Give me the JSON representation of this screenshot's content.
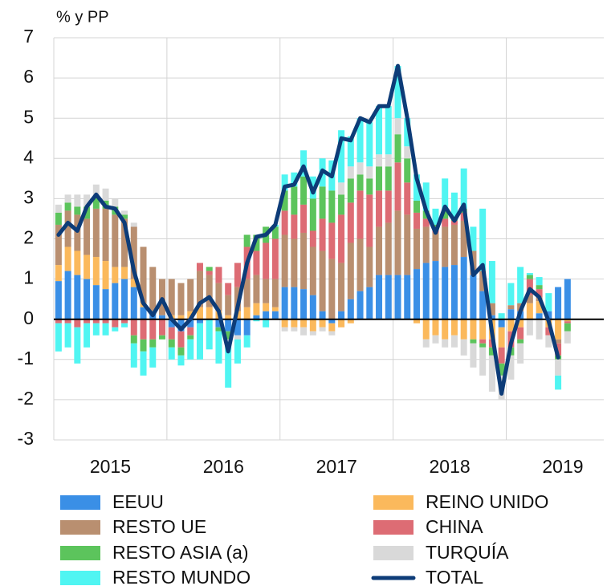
{
  "chart_data": {
    "type": "bar",
    "stacked": true,
    "y_label": "% y PP",
    "categories": [
      null,
      null,
      null,
      null,
      null,
      null,
      null,
      null,
      null,
      null,
      null,
      null,
      null,
      null,
      null,
      null,
      null,
      null,
      null,
      null,
      null,
      null,
      null,
      null,
      null,
      null,
      null,
      null,
      null,
      null,
      null,
      null,
      null,
      null,
      null,
      null,
      null,
      null,
      null,
      null,
      null,
      null,
      null,
      null,
      null,
      null,
      null,
      null,
      null,
      null,
      null,
      null,
      null,
      null,
      null
    ],
    "year_labels": [
      "2015",
      "2016",
      "2017",
      "2018",
      "2019"
    ],
    "ylim": [
      -3,
      7
    ],
    "yticks": [
      -3,
      -2,
      -1,
      0,
      1,
      2,
      3,
      4,
      5,
      6,
      7
    ],
    "grid": true,
    "series": [
      {
        "name": "EEUU",
        "color": "#3a8fe6",
        "values": [
          0.95,
          1.2,
          1.1,
          1.0,
          0.85,
          0.75,
          0.9,
          1.0,
          0.8,
          0.3,
          0.2,
          0.1,
          -0.2,
          -0.3,
          -0.2,
          -0.1,
          0.0,
          -0.2,
          -0.3,
          -0.4,
          -0.4,
          0.1,
          0.2,
          0.2,
          0.8,
          0.8,
          0.75,
          0.6,
          0.2,
          -0.1,
          0.2,
          0.5,
          0.7,
          0.8,
          1.1,
          1.1,
          1.1,
          1.1,
          1.25,
          1.4,
          1.45,
          1.3,
          1.35,
          1.55,
          1.1,
          0.7,
          0.1,
          -0.2,
          0.25,
          0.2,
          0.0,
          0.15,
          0.2,
          0.8,
          1.0
        ]
      },
      {
        "name": "REINO UNIDO",
        "color": "#fbb95c",
        "values": [
          0.4,
          0.6,
          0.6,
          0.6,
          0.7,
          0.7,
          0.4,
          0.3,
          0.2,
          0.1,
          0.0,
          0.0,
          0.1,
          0.1,
          0.2,
          0.3,
          0.3,
          0.2,
          0.1,
          0.2,
          0.3,
          0.3,
          0.2,
          0.1,
          -0.2,
          -0.2,
          -0.2,
          -0.3,
          -0.2,
          -0.2,
          -0.2,
          -0.1,
          0.0,
          0.0,
          0.0,
          0.0,
          0.0,
          0.0,
          -0.1,
          -0.5,
          -0.4,
          -0.5,
          -0.4,
          -0.5,
          -0.5,
          -0.5,
          -0.5,
          -0.5,
          -0.3,
          -0.2,
          0.4,
          0.3,
          -0.2,
          -0.5,
          -0.05
        ]
      },
      {
        "name": "RESTO UE",
        "color": "#b98f70",
        "values": [
          1.0,
          0.9,
          0.9,
          0.9,
          1.2,
          1.3,
          1.3,
          1.2,
          1.3,
          1.4,
          1.1,
          0.9,
          0.9,
          0.8,
          0.8,
          0.9,
          0.8,
          0.7,
          0.5,
          0.6,
          0.7,
          0.7,
          0.6,
          0.7,
          1.3,
          1.2,
          1.4,
          1.2,
          1.5,
          1.5,
          1.2,
          1.4,
          1.3,
          1.0,
          1.2,
          1.3,
          1.6,
          1.5,
          1.0,
          0.9,
          0.7,
          1.0,
          1.0,
          0.9,
          0.6,
          0.5,
          0.3,
          0.0,
          0.1,
          0.2,
          0.2,
          0.1,
          0.0,
          -0.1,
          0.0
        ]
      },
      {
        "name": "CHINA",
        "color": "#dd6c74",
        "values": [
          -0.1,
          -0.1,
          -0.2,
          -0.1,
          -0.1,
          -0.1,
          -0.2,
          -0.1,
          -0.4,
          -0.5,
          -0.5,
          -0.4,
          -0.3,
          -0.4,
          -0.2,
          0.2,
          0.1,
          0.4,
          0.3,
          0.6,
          0.8,
          0.6,
          0.9,
          1.0,
          0.6,
          0.6,
          0.7,
          0.4,
          0.8,
          0.9,
          1.2,
          1.0,
          1.2,
          1.3,
          0.9,
          0.8,
          1.2,
          0.8,
          0.4,
          0.2,
          0.1,
          0.2,
          0.1,
          0.2,
          0.0,
          -0.1,
          -0.2,
          -0.4,
          -0.4,
          -0.3,
          0.4,
          0.2,
          -0.2,
          -0.3,
          -0.05
        ]
      },
      {
        "name": "RESTO ASIA (a)",
        "color": "#5cc45c",
        "values": [
          0.3,
          0.2,
          0.2,
          0.3,
          0.3,
          0.2,
          0.2,
          0.1,
          -0.2,
          -0.3,
          -0.2,
          -0.1,
          -0.2,
          -0.2,
          -0.1,
          0.0,
          0.1,
          -0.1,
          -0.2,
          0.0,
          0.3,
          0.4,
          0.4,
          0.3,
          0.5,
          0.7,
          0.7,
          0.8,
          0.8,
          0.8,
          0.5,
          0.6,
          0.4,
          0.4,
          0.6,
          0.6,
          0.7,
          0.6,
          0.3,
          0.2,
          0.1,
          0.2,
          0.1,
          0.1,
          -0.1,
          -0.1,
          -0.2,
          -0.3,
          -0.2,
          -0.1,
          0.1,
          0.1,
          0.0,
          -0.1,
          -0.2
        ]
      },
      {
        "name": "TURQUÍA",
        "color": "#d9d9d9",
        "values": [
          0.2,
          0.2,
          0.3,
          0.3,
          0.3,
          0.3,
          0.2,
          0.1,
          0.1,
          0.0,
          0.0,
          0.0,
          0.0,
          0.0,
          0.0,
          0.0,
          0.0,
          0.0,
          -0.1,
          -0.1,
          0.0,
          0.0,
          0.0,
          0.0,
          -0.1,
          -0.1,
          -0.2,
          -0.1,
          -0.1,
          -0.1,
          0.3,
          0.3,
          0.3,
          0.3,
          0.3,
          0.3,
          0.4,
          0.3,
          0.0,
          -0.2,
          -0.2,
          -0.2,
          -0.3,
          -0.4,
          -0.6,
          -0.7,
          -0.9,
          -0.6,
          -0.6,
          -0.5,
          -0.4,
          -0.5,
          -0.3,
          -0.4,
          -0.3
        ]
      },
      {
        "name": "RESTO MUNDO",
        "color": "#50f5f2",
        "values": [
          -0.7,
          -0.6,
          -0.9,
          -0.6,
          -0.3,
          -0.3,
          -0.1,
          -0.1,
          -0.6,
          -0.6,
          -0.5,
          0.0,
          -0.3,
          -0.25,
          -0.5,
          -0.9,
          -0.75,
          -0.8,
          -1.1,
          -0.6,
          -0.3,
          -0.05,
          -0.2,
          0.05,
          0.4,
          0.35,
          0.65,
          0.55,
          0.7,
          0.75,
          1.3,
          0.75,
          1.1,
          1.1,
          1.2,
          1.2,
          1.3,
          0.7,
          0.65,
          0.7,
          0.4,
          0.8,
          0.6,
          1.0,
          0.6,
          1.55,
          1.05,
          0.15,
          0.55,
          0.9,
          0.05,
          0.2,
          0.45,
          -0.35,
          0.0
        ]
      }
    ],
    "line": {
      "name": "TOTAL",
      "color": "#0d3c78",
      "values": [
        2.1,
        2.4,
        2.2,
        2.8,
        3.1,
        2.8,
        2.75,
        2.4,
        1.2,
        0.4,
        0.1,
        0.5,
        0.0,
        -0.25,
        0.0,
        0.4,
        0.55,
        0.2,
        -0.8,
        0.3,
        1.4,
        2.05,
        2.1,
        2.35,
        3.3,
        3.35,
        3.8,
        3.15,
        3.7,
        3.55,
        4.5,
        4.45,
        5.0,
        4.9,
        5.3,
        5.3,
        6.3,
        5.0,
        3.5,
        2.7,
        2.15,
        2.8,
        2.45,
        2.85,
        1.1,
        1.35,
        -0.35,
        -1.85,
        -0.6,
        0.2,
        0.75,
        0.55,
        -0.05,
        -0.95,
        null
      ]
    }
  }
}
